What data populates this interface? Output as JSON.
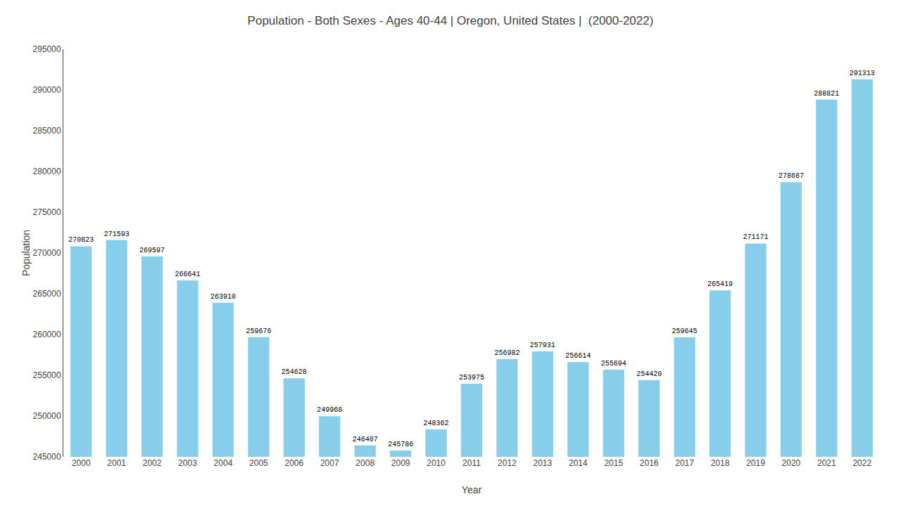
{
  "chart_data": {
    "type": "bar",
    "title": "Population - Both Sexes - Ages 40-44 | Oregon, United States |  (2000-2022)",
    "xlabel": "Year",
    "ylabel": "Population",
    "categories": [
      "2000",
      "2001",
      "2002",
      "2003",
      "2004",
      "2005",
      "2006",
      "2007",
      "2008",
      "2009",
      "2010",
      "2011",
      "2012",
      "2013",
      "2014",
      "2015",
      "2016",
      "2017",
      "2018",
      "2019",
      "2020",
      "2021",
      "2022"
    ],
    "values": [
      270823,
      271593,
      269597,
      266641,
      263910,
      259676,
      254628,
      249968,
      246407,
      245786,
      248362,
      253975,
      256982,
      257931,
      256614,
      255694,
      254420,
      259645,
      265419,
      271171,
      278687,
      288821,
      291313
    ],
    "color": "#87CEEB",
    "ylim": [
      245000,
      295000
    ],
    "yticks": [
      245000,
      250000,
      255000,
      260000,
      265000,
      270000,
      275000,
      280000,
      285000,
      290000,
      295000
    ],
    "grid": false,
    "data_labels": true
  }
}
